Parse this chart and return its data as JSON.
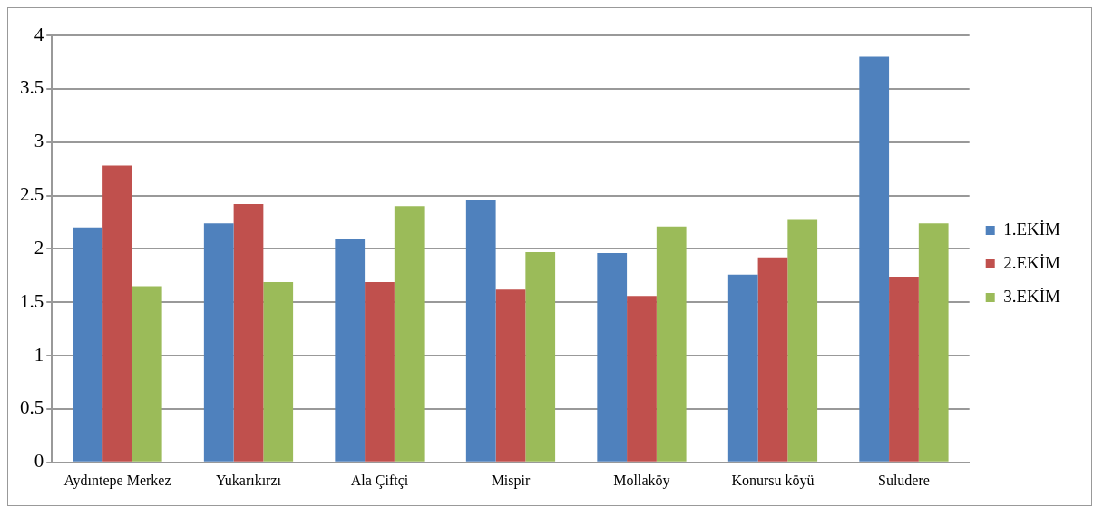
{
  "chart_data": {
    "type": "bar",
    "categories": [
      "Aydıntepe Merkez",
      "Yukarıkırzı",
      "Ala Çiftçi",
      "Mispir",
      "Mollaköy",
      "Konursu köyü",
      "Suludere"
    ],
    "series": [
      {
        "name": "1.EKİM",
        "color": "#4f81bd",
        "values": [
          2.2,
          2.24,
          2.09,
          2.46,
          1.96,
          1.76,
          3.8
        ]
      },
      {
        "name": "2.EKİM",
        "color": "#c0504d",
        "values": [
          2.78,
          2.42,
          1.69,
          1.62,
          1.56,
          1.92,
          1.74
        ]
      },
      {
        "name": "3.EKİM",
        "color": "#9bbb59",
        "values": [
          1.65,
          1.69,
          2.4,
          1.97,
          2.21,
          2.27,
          2.24
        ]
      }
    ],
    "ylim": [
      0,
      4
    ],
    "yticks": [
      0,
      0.5,
      1,
      1.5,
      2,
      2.5,
      3,
      3.5,
      4
    ],
    "grid": "y",
    "legend": "right"
  }
}
